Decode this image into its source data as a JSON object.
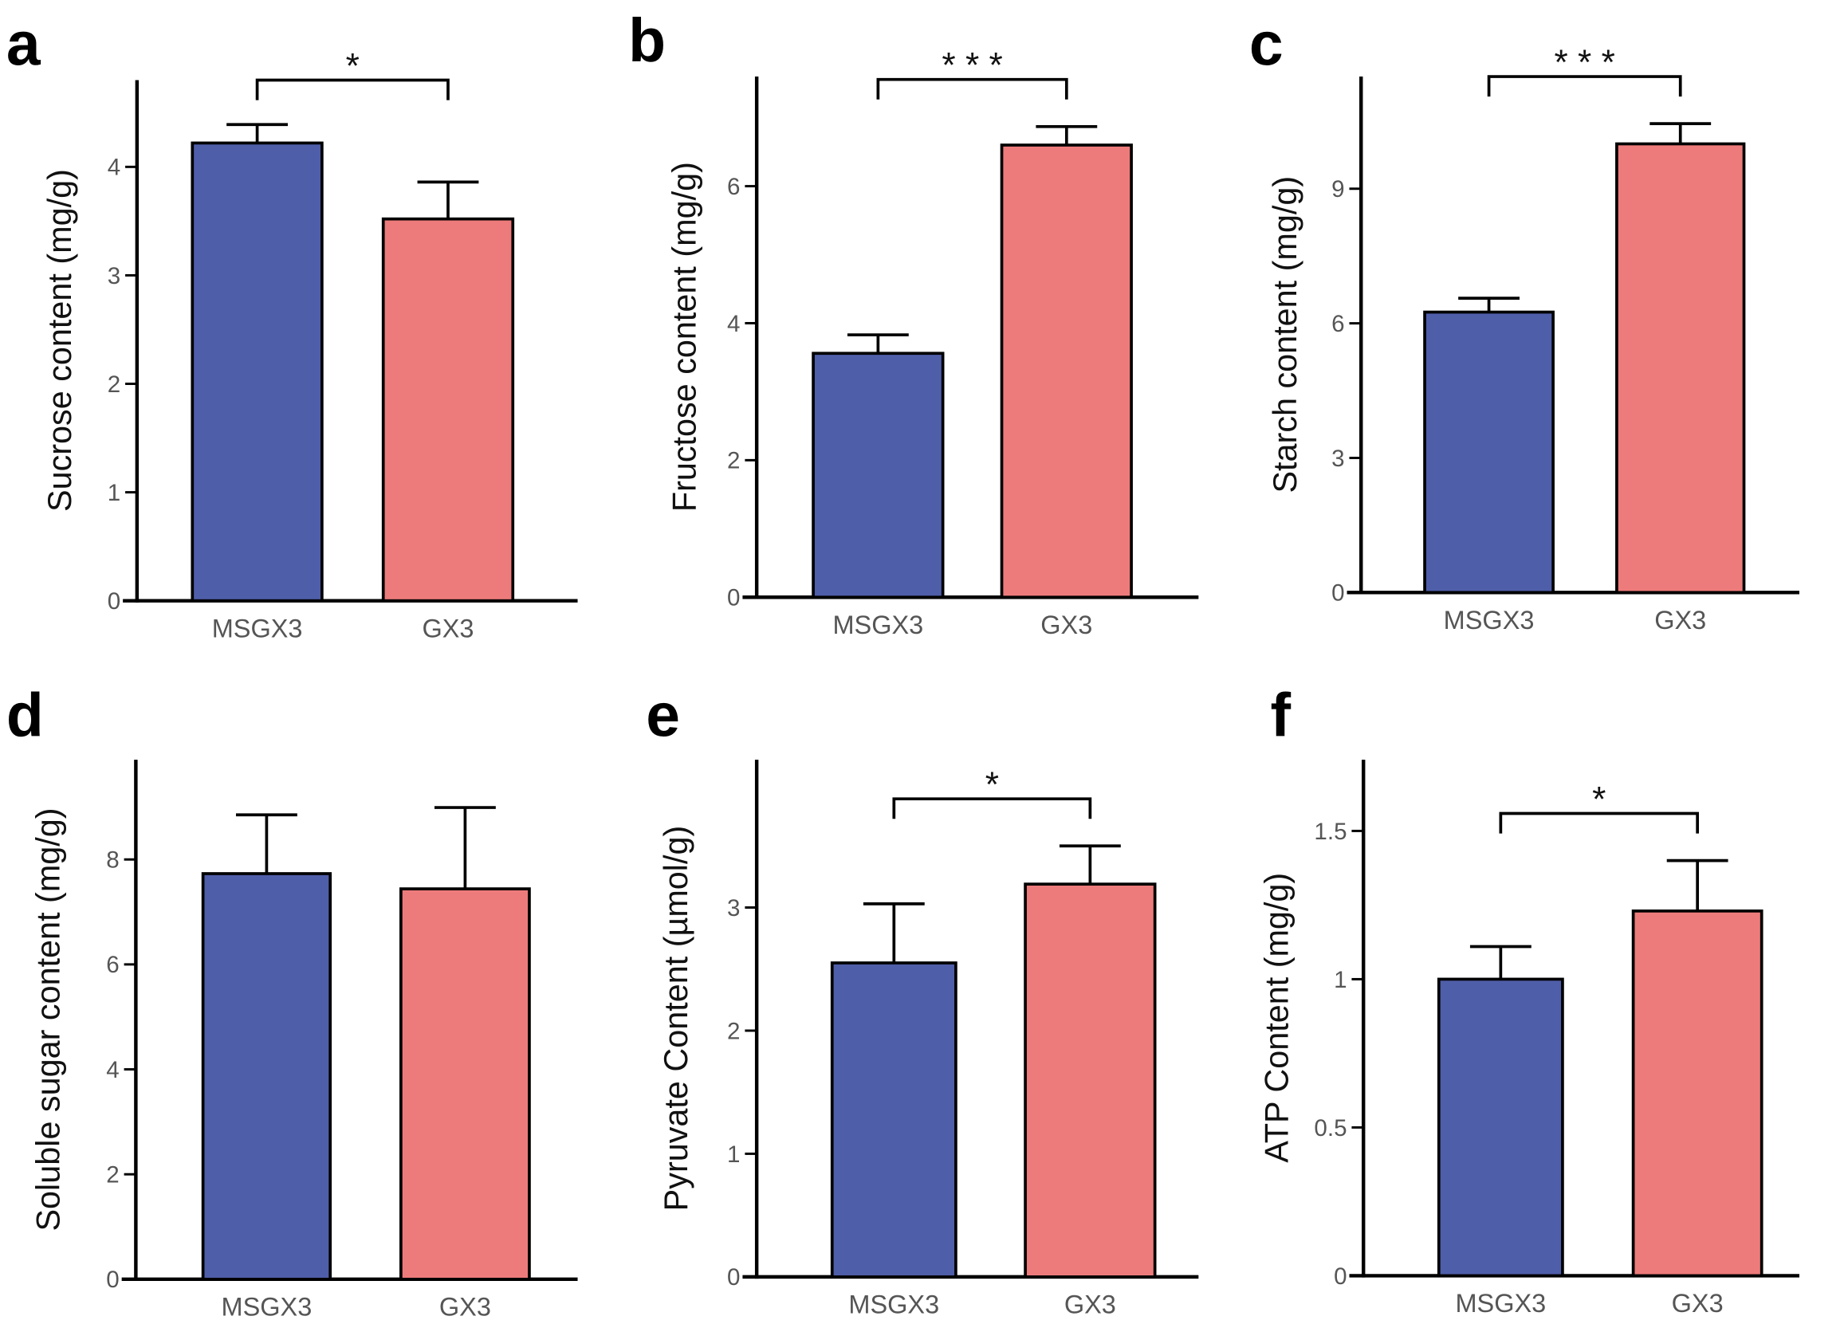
{
  "colors": {
    "MSGX3": "#4f5ea9",
    "GX3": "#ee7b7b",
    "axis": "#000000"
  },
  "chart_data": [
    {
      "panel": "a",
      "type": "bar",
      "ylabel": "Sucrose content (mg/g)",
      "categories": [
        "MSGX3",
        "GX3"
      ],
      "values": [
        4.22,
        3.52
      ],
      "errors": [
        0.17,
        0.34
      ],
      "yticks": [
        0,
        1,
        2,
        3,
        4
      ],
      "ylim": [
        0,
        4.8
      ],
      "significance": "*"
    },
    {
      "panel": "b",
      "type": "bar",
      "ylabel": "Fructose content (mg/g)",
      "categories": [
        "MSGX3",
        "GX3"
      ],
      "values": [
        3.56,
        6.6
      ],
      "errors": [
        0.27,
        0.27
      ],
      "yticks": [
        0,
        2,
        4,
        6
      ],
      "ylim": [
        0,
        7.6
      ],
      "significance": "* * *"
    },
    {
      "panel": "c",
      "type": "bar",
      "ylabel": "Starch content (mg/g)",
      "categories": [
        "MSGX3",
        "GX3"
      ],
      "values": [
        6.25,
        10.0
      ],
      "errors": [
        0.31,
        0.45
      ],
      "yticks": [
        0,
        3,
        6,
        9
      ],
      "ylim": [
        0,
        11.5
      ],
      "significance": "* * *"
    },
    {
      "panel": "d",
      "type": "bar",
      "ylabel": "Soluble sugar content (mg/g)",
      "categories": [
        "MSGX3",
        "GX3"
      ],
      "values": [
        7.73,
        7.44
      ],
      "errors": [
        1.12,
        1.55
      ],
      "yticks": [
        0,
        2,
        4,
        6,
        8
      ],
      "ylim": [
        0,
        9.9
      ],
      "significance": ""
    },
    {
      "panel": "e",
      "type": "bar",
      "ylabel": "Pyruvate Content (µmol/g)",
      "categories": [
        "MSGX3",
        "GX3"
      ],
      "values": [
        2.55,
        3.19
      ],
      "errors": [
        0.48,
        0.31
      ],
      "yticks": [
        0,
        1,
        2,
        3
      ],
      "ylim": [
        0,
        4.2
      ],
      "significance": "*"
    },
    {
      "panel": "f",
      "type": "bar",
      "ylabel": "ATP Content (mg/g)",
      "categories": [
        "MSGX3",
        "GX3"
      ],
      "values": [
        1.0,
        1.23
      ],
      "errors": [
        0.11,
        0.17
      ],
      "yticks": [
        0,
        0.5,
        1,
        1.5
      ],
      "ylim": [
        0,
        1.74
      ],
      "significance": "*"
    }
  ]
}
